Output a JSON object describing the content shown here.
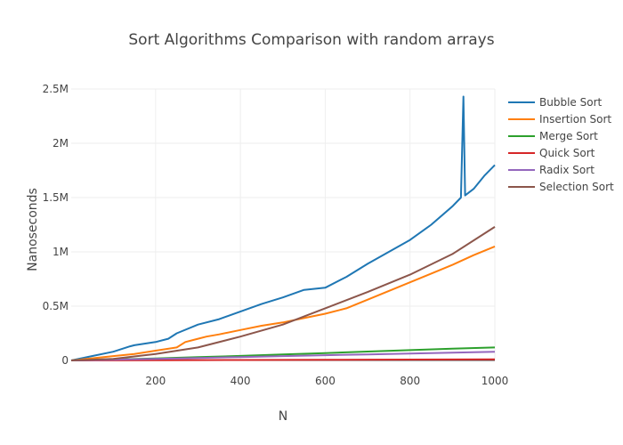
{
  "chart_data": {
    "type": "line",
    "title": "Sort Algorithms Comparison with random arrays",
    "xlabel": "N",
    "ylabel": "Nanoseconds",
    "xlim": [
      1,
      1000
    ],
    "ylim": [
      0,
      2500000
    ],
    "xticks": [
      200,
      400,
      600,
      800,
      1000
    ],
    "xtick_labels": [
      "200",
      "400",
      "600",
      "800",
      "1000"
    ],
    "yticks": [
      0,
      500000,
      1000000,
      1500000,
      2000000,
      2500000
    ],
    "ytick_labels": [
      "0",
      "0.5M",
      "1M",
      "1.5M",
      "2M",
      "2.5M"
    ],
    "grid": true,
    "legend_position": "top-right",
    "series": [
      {
        "name": "Bubble Sort",
        "color": "#1f77b4",
        "x": [
          1,
          50,
          100,
          140,
          150,
          200,
          230,
          250,
          300,
          350,
          400,
          450,
          500,
          550,
          600,
          650,
          700,
          750,
          800,
          850,
          900,
          920,
          926,
          930,
          950,
          975,
          1000
        ],
        "y": [
          0,
          40000,
          80000,
          130000,
          140000,
          170000,
          200000,
          250000,
          330000,
          380000,
          450000,
          520000,
          580000,
          650000,
          670000,
          770000,
          890000,
          1000000,
          1110000,
          1250000,
          1420000,
          1500000,
          2430000,
          1520000,
          1580000,
          1700000,
          1800000
        ]
      },
      {
        "name": "Insertion Sort",
        "color": "#ff7f0e",
        "x": [
          1,
          50,
          100,
          150,
          200,
          250,
          270,
          300,
          320,
          350,
          400,
          450,
          500,
          550,
          600,
          650,
          700,
          750,
          800,
          850,
          900,
          950,
          1000
        ],
        "y": [
          0,
          20000,
          40000,
          60000,
          90000,
          120000,
          170000,
          200000,
          220000,
          240000,
          280000,
          320000,
          350000,
          390000,
          430000,
          480000,
          560000,
          640000,
          720000,
          800000,
          880000,
          970000,
          1050000
        ]
      },
      {
        "name": "Merge Sort",
        "color": "#2ca02c",
        "x": [
          1,
          100,
          200,
          300,
          400,
          500,
          600,
          700,
          800,
          900,
          1000
        ],
        "y": [
          0,
          8000,
          18000,
          30000,
          42000,
          55000,
          68000,
          82000,
          95000,
          108000,
          120000
        ]
      },
      {
        "name": "Quick Sort",
        "color": "#d62728",
        "x": [
          1,
          100,
          200,
          300,
          400,
          500,
          600,
          700,
          800,
          900,
          1000
        ],
        "y": [
          0,
          1000,
          2000,
          3000,
          4000,
          5000,
          6000,
          7000,
          8000,
          9000,
          10000
        ]
      },
      {
        "name": "Radix Sort",
        "color": "#9467bd",
        "x": [
          1,
          100,
          200,
          300,
          400,
          500,
          600,
          700,
          800,
          900,
          1000
        ],
        "y": [
          0,
          7000,
          15000,
          23000,
          31000,
          40000,
          48000,
          56000,
          64000,
          72000,
          80000
        ]
      },
      {
        "name": "Selection Sort",
        "color": "#8c564b",
        "x": [
          1,
          100,
          200,
          300,
          400,
          500,
          600,
          700,
          800,
          900,
          1000
        ],
        "y": [
          0,
          15000,
          60000,
          120000,
          220000,
          330000,
          480000,
          630000,
          790000,
          980000,
          1230000
        ]
      }
    ]
  }
}
